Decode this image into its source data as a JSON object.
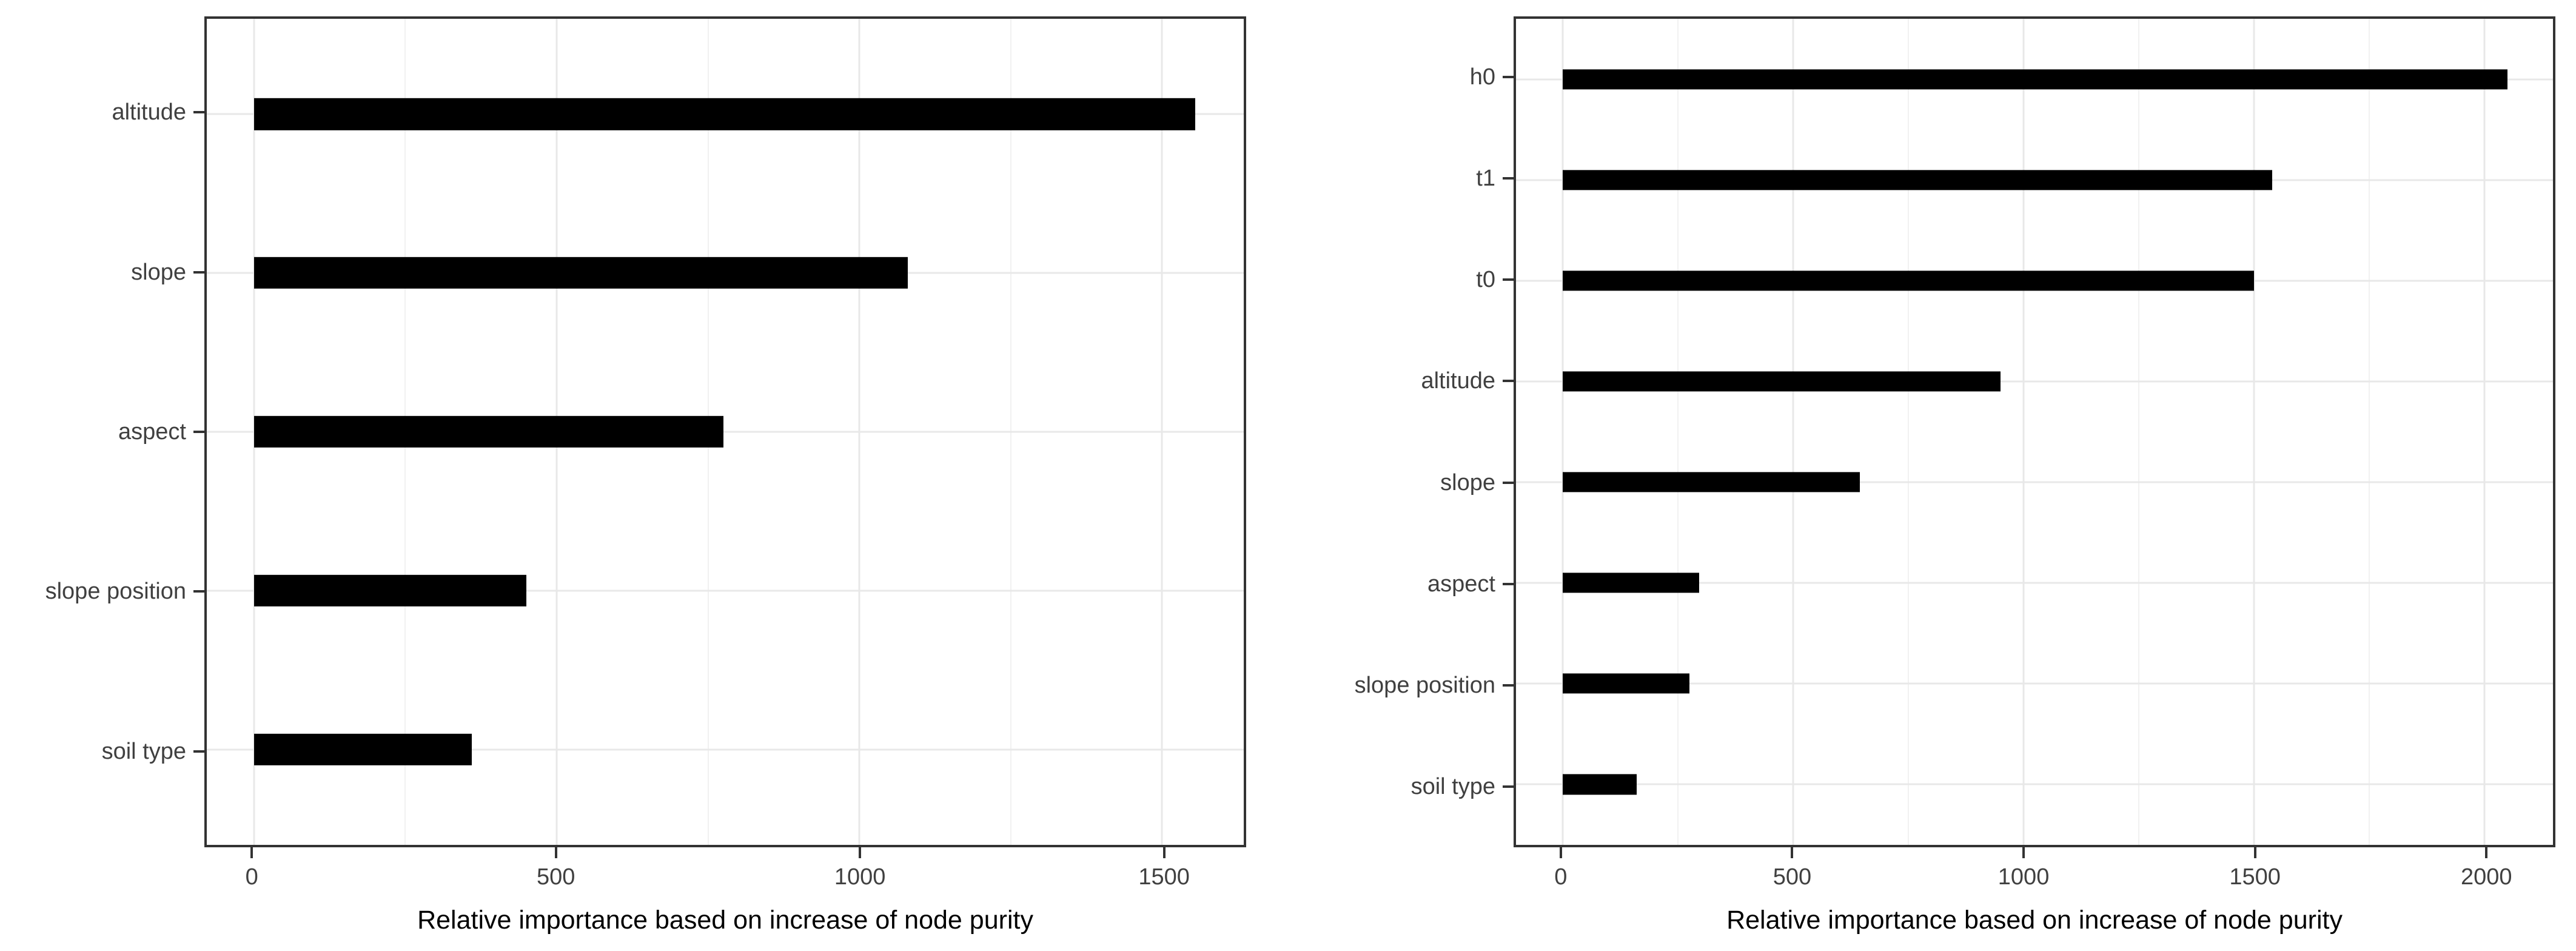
{
  "figure": {
    "background_color": "#ffffff",
    "panel_border_color": "#333333",
    "grid_major_color": "#e8e8e8",
    "grid_minor_color": "#f1f1f1",
    "axis_text_color": "#404040",
    "axis_title_color": "#000000",
    "bar_color": "#000000"
  },
  "chart_data": [
    {
      "type": "bar",
      "orientation": "horizontal",
      "title": "",
      "xlabel": "Relative importance based on increase of node purity",
      "ylabel": "",
      "categories": [
        "altitude",
        "slope",
        "aspect",
        "slope position",
        "soil type"
      ],
      "values": [
        1555,
        1080,
        775,
        450,
        360
      ],
      "x_ticks": [
        0,
        500,
        1000,
        1500
      ],
      "xlim": [
        -78,
        1635
      ],
      "grid": true,
      "legend": false
    },
    {
      "type": "bar",
      "orientation": "horizontal",
      "title": "",
      "xlabel": "Relative importance based on increase of node purity",
      "ylabel": "",
      "categories": [
        "h0",
        "t1",
        "t0",
        "altitude",
        "slope",
        "aspect",
        "slope position",
        "soil type"
      ],
      "values": [
        2050,
        1540,
        1500,
        950,
        645,
        295,
        275,
        160
      ],
      "x_ticks": [
        0,
        500,
        1000,
        1500,
        2000
      ],
      "xlim": [
        -102,
        2149
      ],
      "grid": true,
      "legend": false
    }
  ]
}
